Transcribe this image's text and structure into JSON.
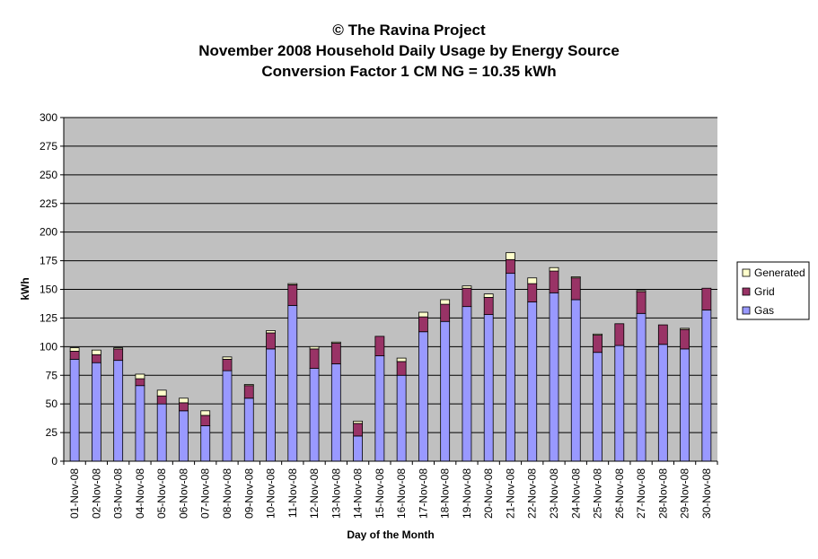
{
  "chart_data": {
    "type": "bar",
    "stacked": true,
    "title": [
      "© The Ravina Project",
      "November 2008 Household Daily Usage by Energy Source",
      "Conversion Factor 1 CM NG = 10.35 kWh"
    ],
    "xlabel": "Day of the Month",
    "ylabel": "kWh",
    "ylim": [
      0,
      300
    ],
    "yticks": [
      0,
      25,
      50,
      75,
      100,
      125,
      150,
      175,
      200,
      225,
      250,
      275,
      300
    ],
    "grid": true,
    "legend_position": "right",
    "categories": [
      "01-Nov-08",
      "02-Nov-08",
      "03-Nov-08",
      "04-Nov-08",
      "05-Nov-08",
      "06-Nov-08",
      "07-Nov-08",
      "08-Nov-08",
      "09-Nov-08",
      "10-Nov-08",
      "11-Nov-08",
      "12-Nov-08",
      "13-Nov-08",
      "14-Nov-08",
      "15-Nov-08",
      "16-Nov-08",
      "17-Nov-08",
      "18-Nov-08",
      "19-Nov-08",
      "20-Nov-08",
      "21-Nov-08",
      "22-Nov-08",
      "23-Nov-08",
      "24-Nov-08",
      "25-Nov-08",
      "26-Nov-08",
      "27-Nov-08",
      "28-Nov-08",
      "29-Nov-08",
      "30-Nov-08"
    ],
    "series": [
      {
        "name": "Gas",
        "color": "#9999ff",
        "values": [
          89,
          86,
          88,
          66,
          50,
          44,
          31,
          79,
          55,
          98,
          136,
          81,
          85,
          22,
          92,
          75,
          113,
          122,
          135,
          128,
          164,
          139,
          147,
          141,
          95,
          101,
          129,
          102,
          98,
          132
        ]
      },
      {
        "name": "Grid",
        "color": "#993366",
        "values": [
          7,
          7,
          10,
          6,
          7,
          7,
          9,
          10,
          11,
          14,
          18,
          17,
          18,
          11,
          17,
          12,
          13,
          15,
          16,
          15,
          12,
          16,
          19,
          19,
          15,
          19,
          19,
          17,
          17,
          19
        ]
      },
      {
        "name": "Generated",
        "color": "#ffffcc",
        "values": [
          3,
          4,
          1,
          4,
          5,
          4,
          4,
          2,
          1,
          2,
          1,
          2,
          1,
          2,
          0,
          3,
          4,
          4,
          2,
          3,
          6,
          5,
          3,
          1,
          1,
          0,
          1,
          0,
          1,
          0
        ]
      }
    ],
    "colors": {
      "plot_background": "#c0c0c0",
      "gridline": "#000000"
    }
  }
}
